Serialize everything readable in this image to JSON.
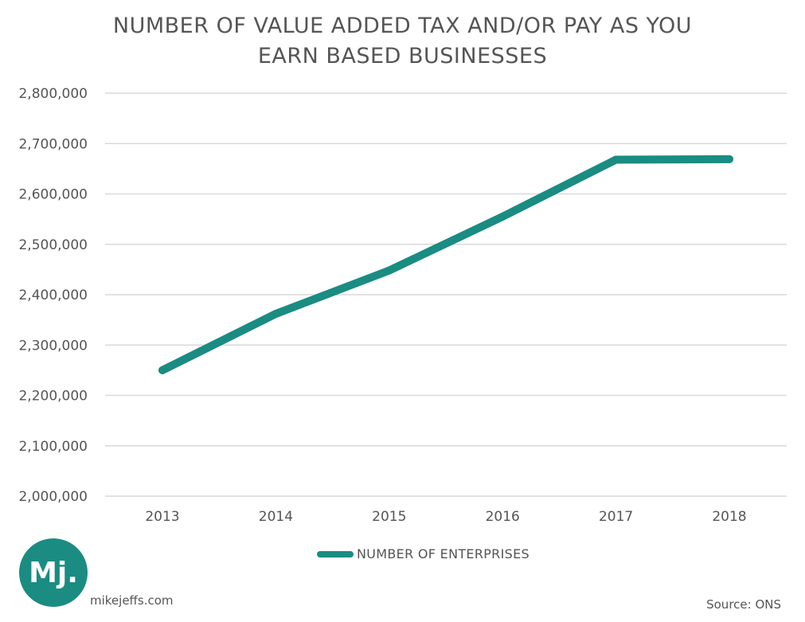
{
  "colors": {
    "series": "#1a8c82",
    "logo": "#1a8c82",
    "grid": "#d9d9d9",
    "text": "#555555"
  },
  "chart_data": {
    "type": "line",
    "title_lines": [
      "NUMBER OF VALUE ADDED TAX AND/OR PAY AS YOU",
      "EARN BASED BUSINESSES"
    ],
    "x": [
      "2013",
      "2014",
      "2015",
      "2016",
      "2017",
      "2018"
    ],
    "series": [
      {
        "name": "NUMBER OF ENTERPRISES",
        "values": [
          2250000,
          2362000,
          2448000,
          2555000,
          2668000,
          2669000
        ]
      }
    ],
    "ylim": [
      2000000,
      2800000
    ],
    "yticks": [
      2000000,
      2100000,
      2200000,
      2300000,
      2400000,
      2500000,
      2600000,
      2700000,
      2800000
    ],
    "ytick_labels": [
      "2,000,000",
      "2,100,000",
      "2,200,000",
      "2,300,000",
      "2,400,000",
      "2,500,000",
      "2,600,000",
      "2,700,000",
      "2,800,000"
    ],
    "grid": true,
    "legend_position": "bottom"
  },
  "branding": {
    "logo_text": "Mj.",
    "site": "mikejeffs.com",
    "source": "Source: ONS"
  }
}
